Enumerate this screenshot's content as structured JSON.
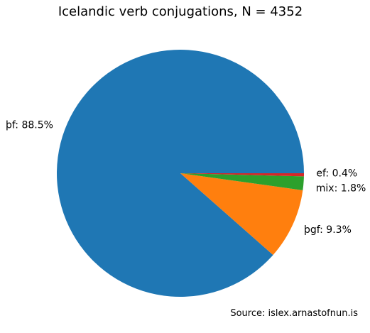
{
  "chart_data": {
    "type": "pie",
    "title": "Icelandic verb conjugations, N = 4352",
    "slices": [
      {
        "label": "þf",
        "percent": 88.5,
        "text": "þf: 88.5%",
        "color": "#1f77b4"
      },
      {
        "label": "þgf",
        "percent": 9.3,
        "text": "þgf: 9.3%",
        "color": "#ff7f0e"
      },
      {
        "label": "mix",
        "percent": 1.8,
        "text": "mix: 1.8%",
        "color": "#2ca02c"
      },
      {
        "label": "ef",
        "percent": 0.4,
        "text": "ef: 0.4%",
        "color": "#d62728"
      }
    ],
    "source": "Source: islex.arnastofnun.is"
  }
}
